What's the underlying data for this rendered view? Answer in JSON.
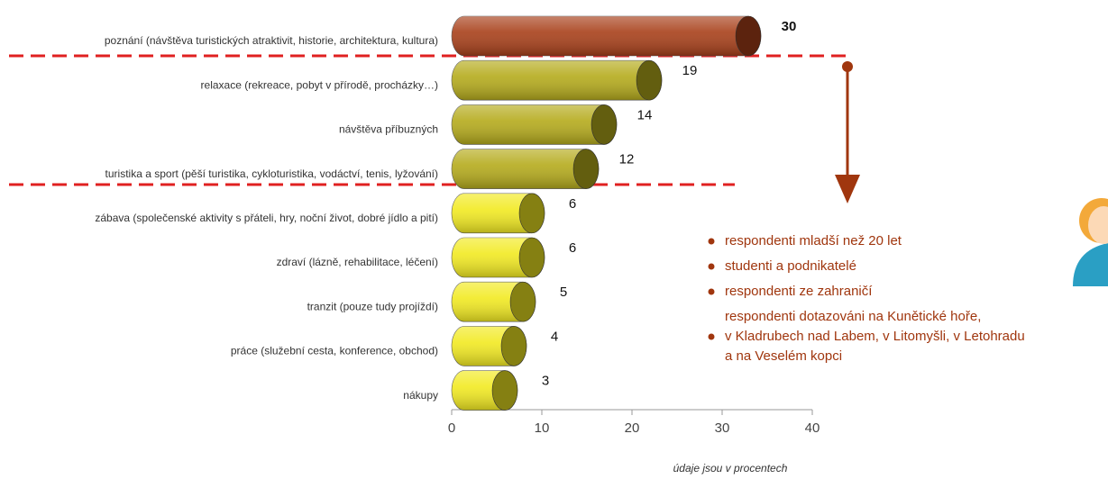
{
  "chart_data": {
    "type": "bar",
    "categories": [
      "poznání (návštěva turistických atraktivit, historie, architektura, kultura)",
      "relaxace (rekreace, pobyt v přírodě, procházky…)",
      "návštěva příbuzných",
      "turistika a sport (pěší turistika, cykloturistika, vodáctví, tenis, lyžování)",
      "zábava (společenské aktivity s přáteli, hry, noční život, dobré jídlo a pití)",
      "zdraví (lázně, rehabilitace, léčení)",
      "tranzit (pouze tudy projíždí)",
      "práce (služební cesta, konference, obchod)",
      "nákupy"
    ],
    "values": [
      30,
      19,
      14,
      12,
      6,
      6,
      5,
      4,
      3
    ],
    "colors": [
      "#a8401a",
      "#b5ab1c",
      "#b5ab1c",
      "#b5ab1c",
      "#f2ea22",
      "#f2ea22",
      "#f2ea22",
      "#f2ea22",
      "#f2ea22"
    ],
    "label_colors": [
      "#a0360e",
      "#111111",
      "#111111",
      "#111111",
      "#111111",
      "#111111",
      "#111111",
      "#111111",
      "#111111"
    ],
    "xlim": [
      0,
      40
    ],
    "xticks": [
      0,
      10,
      20,
      30,
      40
    ],
    "annotations": [
      [
        "respondenti mladší než 20 let"
      ],
      [
        "studenti a podnikatelé"
      ],
      [
        "respondenti ze zahraničí"
      ],
      [
        "respondenti dotazováni na Kunětické hoře,",
        "v Kladrubech nad Labem, v Litomyšli, v Letohradu",
        "a na Veselém kopci"
      ]
    ],
    "note": "údaje jsou v procentech"
  }
}
